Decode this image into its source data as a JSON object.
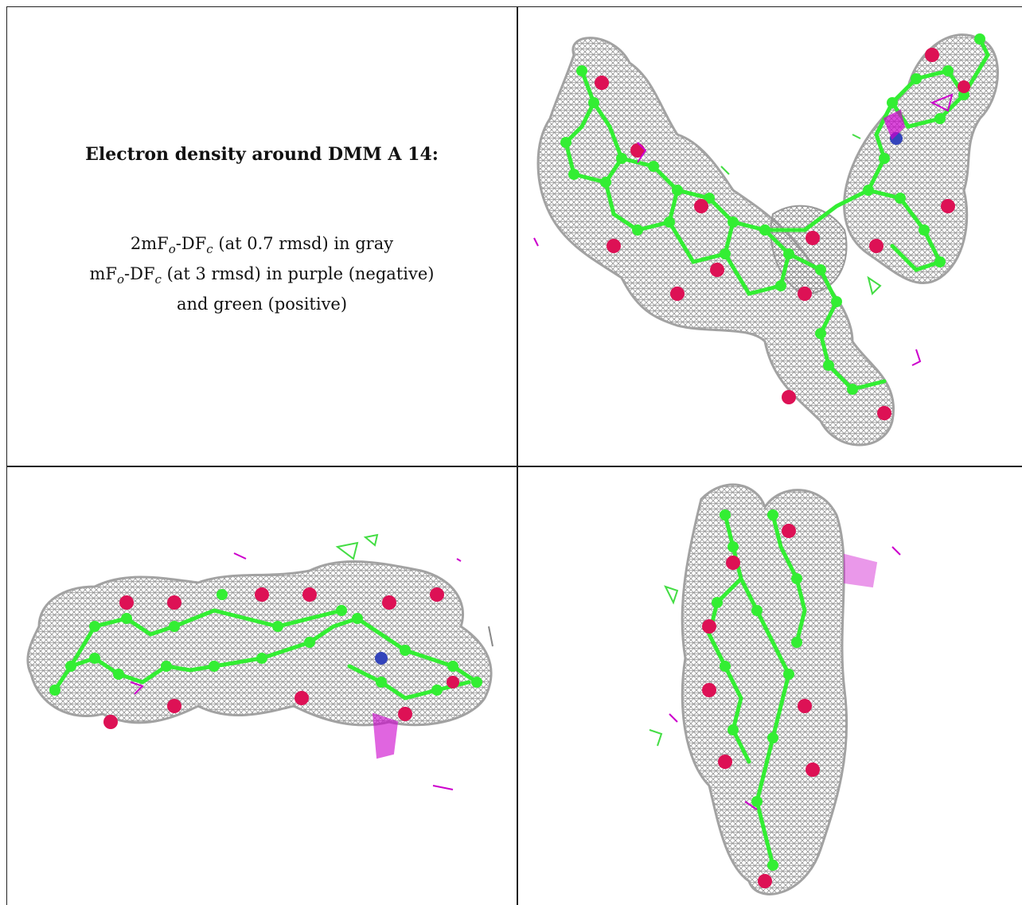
{
  "caption": {
    "title": "Electron density around DMM A 14:",
    "line1": "2mFo-DFc (at 0.7 rmsd) in gray",
    "line2": "mFo-DFc (at 3 rmsd) in purple (negative)",
    "line3": "and green (positive)",
    "line1_parts": [
      "2mF",
      "o",
      "-DF",
      "c",
      " (at 0.7 rmsd) in gray"
    ],
    "line2_parts": [
      "mF",
      "o",
      "-DF",
      "c",
      " (at 3 rmsd) in purple (negative)"
    ]
  },
  "colors": {
    "mesh_gray": "#8a8a8a",
    "carbon_green": "#33ee33",
    "oxygen_red": "#dd1155",
    "nitrogen_blue": "#3344bb",
    "negative_purple": "#cc00cc",
    "positive_green": "#44dd44",
    "border": "#222222"
  },
  "panels": [
    {
      "name": "view-top-right",
      "description_icon": "molecule-density-view"
    },
    {
      "name": "view-bottom-left",
      "description_icon": "molecule-density-view"
    },
    {
      "name": "view-bottom-right",
      "description_icon": "molecule-density-view"
    }
  ]
}
